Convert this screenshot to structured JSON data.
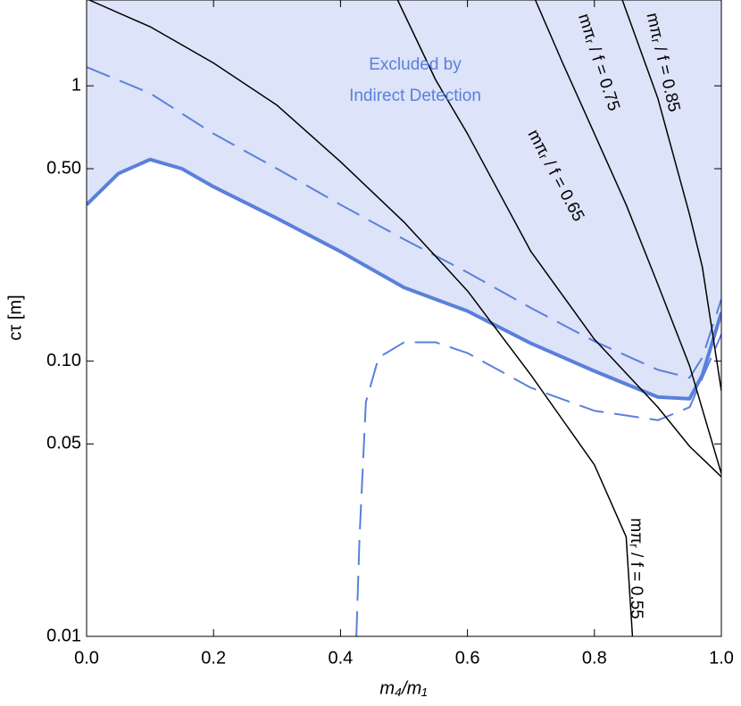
{
  "chart_data": {
    "type": "line",
    "log_y": true,
    "xlabel": "m₄/m₁",
    "ylabel": "cτ [m]",
    "xlim": [
      0,
      1
    ],
    "ylim": [
      0.01,
      2.05
    ],
    "xticks": [
      {
        "value": 0,
        "label": "0.0"
      },
      0.2,
      0.4,
      0.6,
      0.8,
      {
        "value": 1,
        "label": "1.0"
      }
    ],
    "yticks": [
      0.01,
      0.05,
      {
        "value": 0.1,
        "label": "0.10"
      },
      {
        "value": 0.5,
        "label": "0.50"
      },
      1
    ],
    "region_color": "#dde3f8",
    "annotations": [
      "Excluded by",
      "Indirect Detection",
      "mπᵣ / f = 0.55",
      "mπᵣ / f = 0.65",
      "mπᵣ / f = 0.75",
      "mπᵣ / f = 0.85"
    ],
    "series": [
      {
        "color": "#5a80dc",
        "width": 4,
        "dash": false,
        "fill_above": true,
        "x": [
          0,
          0.05,
          0.1,
          0.15,
          0.2,
          0.3,
          0.4,
          0.5,
          0.6,
          0.7,
          0.8,
          0.9,
          0.95,
          0.97,
          1.0
        ],
        "values": [
          0.37,
          0.48,
          0.54,
          0.5,
          0.43,
          0.33,
          0.25,
          0.185,
          0.152,
          0.116,
          0.092,
          0.074,
          0.073,
          0.089,
          0.15
        ]
      },
      {
        "color": "#5a80dc",
        "width": 2,
        "dash": true,
        "x": [
          0,
          0.1,
          0.2,
          0.3,
          0.4,
          0.5,
          0.6,
          0.7,
          0.8,
          0.9,
          0.95,
          0.97,
          1.0
        ],
        "values": [
          1.17,
          0.94,
          0.67,
          0.5,
          0.37,
          0.277,
          0.21,
          0.156,
          0.118,
          0.093,
          0.087,
          0.103,
          0.168
        ]
      },
      {
        "color": "#5a80dc",
        "width": 2,
        "dash": true,
        "x": [
          0.425,
          0.43,
          0.44,
          0.46,
          0.5,
          0.55,
          0.6,
          0.7,
          0.8,
          0.9,
          0.95,
          1.0
        ],
        "values": [
          0.01,
          0.023,
          0.071,
          0.103,
          0.117,
          0.117,
          0.107,
          0.08,
          0.066,
          0.061,
          0.068,
          0.125
        ]
      },
      {
        "color": "#000000",
        "width": 1.5,
        "dash": false,
        "x": [
          0.004,
          0.1,
          0.2,
          0.3,
          0.4,
          0.5,
          0.6,
          0.7,
          0.8,
          0.85,
          0.86
        ],
        "values": [
          2.05,
          1.64,
          1.21,
          0.85,
          0.53,
          0.32,
          0.18,
          0.089,
          0.042,
          0.023,
          0.01
        ]
      },
      {
        "color": "#000000",
        "width": 1.5,
        "dash": false,
        "x": [
          0.49,
          0.55,
          0.6,
          0.7,
          0.8,
          0.9,
          0.95,
          1.0
        ],
        "values": [
          2.05,
          1.05,
          0.67,
          0.25,
          0.12,
          0.068,
          0.049,
          0.038
        ]
      },
      {
        "color": "#000000",
        "width": 1.5,
        "dash": false,
        "x": [
          0.707,
          0.75,
          0.8,
          0.85,
          0.9,
          0.95,
          1.0
        ],
        "values": [
          2.05,
          1.21,
          0.67,
          0.37,
          0.19,
          0.096,
          0.039
        ]
      },
      {
        "color": "#000000",
        "width": 1.5,
        "dash": false,
        "x": [
          0.844,
          0.9,
          0.95,
          0.97,
          1.0
        ],
        "values": [
          2.05,
          0.9,
          0.34,
          0.22,
          0.078
        ]
      }
    ]
  }
}
